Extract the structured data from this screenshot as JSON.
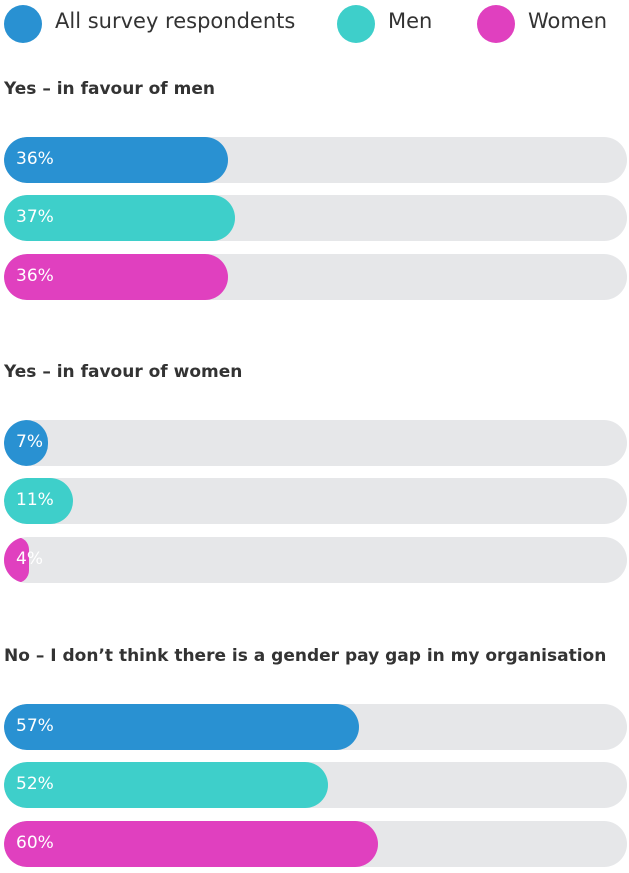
{
  "chart_data": {
    "type": "bar",
    "orientation": "horizontal",
    "legend_position": "top",
    "value_format": "percent",
    "xlim": [
      0,
      100
    ],
    "grid": false,
    "series": [
      {
        "name": "All survey respondents",
        "color": "#2991d2"
      },
      {
        "name": "Men",
        "color": "#3ecfca"
      },
      {
        "name": "Women",
        "color": "#e040bf"
      }
    ],
    "track_color": "#e6e7e9",
    "categories": [
      {
        "title": "Yes – in favour of men",
        "values": [
          36,
          37,
          36
        ],
        "labels": [
          "36%",
          "37%",
          "36%"
        ]
      },
      {
        "title": "Yes – in favour of women",
        "values": [
          7,
          11,
          4
        ],
        "labels": [
          "7%",
          "11%",
          "4%"
        ]
      },
      {
        "title": "No – I don’t think there is a gender pay gap in my organisation",
        "values": [
          57,
          52,
          60
        ],
        "labels": [
          "57%",
          "52%",
          "60%"
        ]
      }
    ]
  }
}
